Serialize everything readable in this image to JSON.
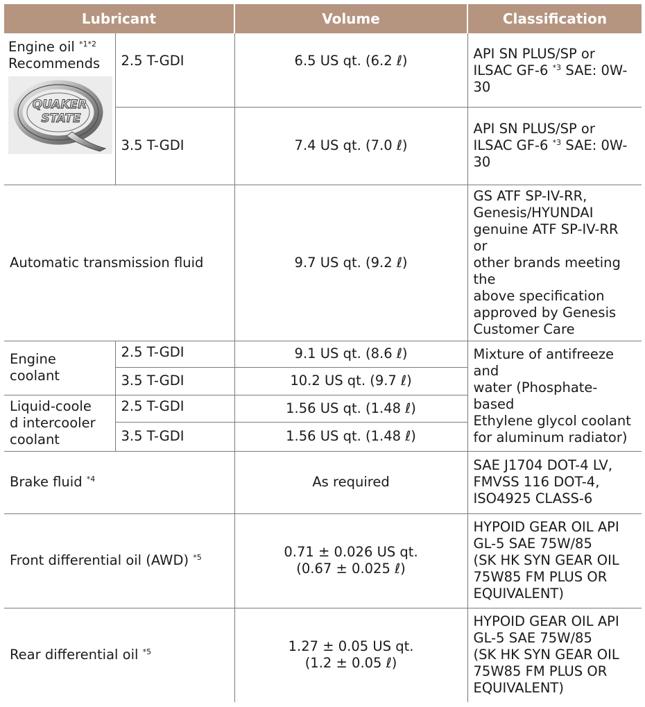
{
  "header": {
    "lubricant": "Lubricant",
    "volume": "Volume",
    "classification": "Classification"
  },
  "engine_oil": {
    "label": "Engine oil",
    "notes": "*1*2",
    "recommends": "Recommends",
    "logo_text_1": "QUAKER",
    "logo_text_2": "STATE",
    "rows": [
      {
        "engine": "2.5 T-GDI",
        "volume": "6.5 US qt. (6.2 ℓ)",
        "class_a": "API SN PLUS/SP or ILSAC GF-6",
        "class_note": "*3",
        "class_b": "SAE: 0W-30"
      },
      {
        "engine": "3.5 T-GDI",
        "volume": "7.4 US qt. (7.0 ℓ)",
        "class_a": "API SN PLUS/SP or ILSAC GF-6",
        "class_note": "*3",
        "class_b": "SAE: 0W-30"
      }
    ]
  },
  "atf": {
    "label": "Automatic transmission fluid",
    "volume": "9.7 US qt. (9.2 ℓ)",
    "class_lines": [
      "GS ATF SP-IV-RR,",
      "Genesis/HYUNDAI",
      "genuine ATF SP-IV-RR or",
      "other brands meeting the",
      "above specification",
      "approved by Genesis",
      "Customer Care"
    ]
  },
  "engine_coolant": {
    "label_lines": [
      "Engine",
      "coolant"
    ],
    "rows": [
      {
        "engine": "2.5 T-GDI",
        "volume": "9.1 US qt. (8.6 ℓ)"
      },
      {
        "engine": "3.5 T-GDI",
        "volume": "10.2 US qt. (9.7 ℓ)"
      }
    ]
  },
  "intercooler_coolant": {
    "label_lines": [
      "Liquid-coole",
      "d intercooler",
      "coolant"
    ],
    "rows": [
      {
        "engine": "2.5 T-GDI",
        "volume": "1.56 US qt. (1.48 ℓ)"
      },
      {
        "engine": "3.5 T-GDI",
        "volume": "1.56 US qt. (1.48 ℓ)"
      }
    ]
  },
  "coolant_classification_lines": [
    "Mixture of antifreeze and",
    "water (Phosphate-based",
    "Ethylene glycol coolant",
    "for aluminum radiator)"
  ],
  "brake_fluid": {
    "label": "Brake fluid",
    "note": "*4",
    "volume": "As required",
    "class_lines": [
      "SAE J1704 DOT-4 LV,",
      "FMVSS 116 DOT-4,",
      "ISO4925 CLASS-6"
    ]
  },
  "front_diff": {
    "label": "Front differential oil (AWD)",
    "note": "*5",
    "volume_lines": [
      "0.71 ± 0.026 US qt.",
      "(0.67 ± 0.025 ℓ)"
    ],
    "class_lines": [
      "HYPOID GEAR OIL API",
      "GL-5 SAE 75W/85",
      "(SK HK SYN GEAR OIL",
      "75W85 FM PLUS OR",
      "EQUIVALENT)"
    ]
  },
  "rear_diff": {
    "label": "Rear differential oil",
    "note": "*5",
    "volume_lines": [
      "1.27 ± 0.05 US qt.",
      "(1.2 ± 0.05 ℓ)"
    ],
    "class_lines": [
      "HYPOID GEAR OIL API",
      "GL-5 SAE 75W/85",
      "(SK HK SYN GEAR OIL",
      "75W85 FM PLUS OR",
      "EQUIVALENT)"
    ]
  },
  "colors": {
    "header_bg": "#b59580",
    "header_text": "#ffffff",
    "border": "#7a7a7a",
    "text": "#1a1a1a"
  }
}
